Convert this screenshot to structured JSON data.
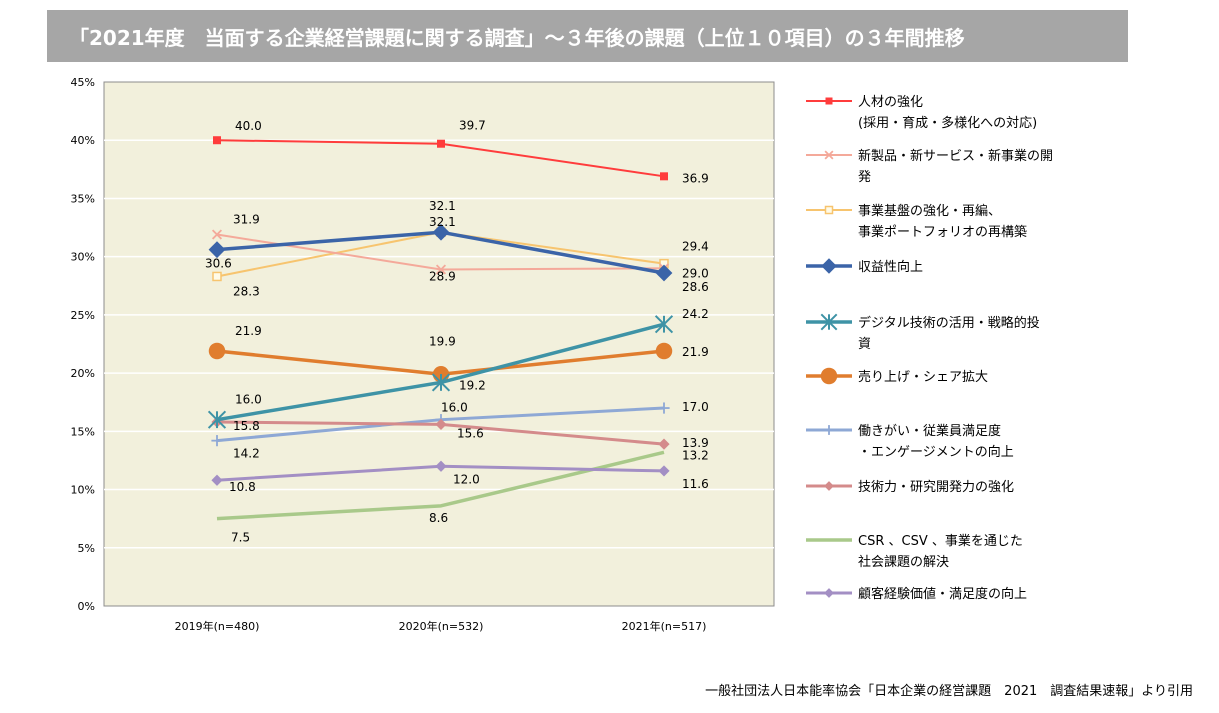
{
  "header": {
    "title": "「2021年度　当面する企業経営課題に関する調査」～３年後の課題（上位１０項目）の３年間推移"
  },
  "footer": {
    "source": "一般社団法人日本能率協会「日本企業の経営課題　2021　調査結果速報」より引用"
  },
  "chart_data": {
    "type": "line",
    "categories": [
      "2019年(n=480)",
      "2020年(n=532)",
      "2021年(n=517)"
    ],
    "yticks": [
      "0%",
      "5%",
      "10%",
      "15%",
      "20%",
      "25%",
      "30%",
      "35%",
      "40%",
      "45%"
    ],
    "ylim": [
      0,
      45
    ],
    "grid": true,
    "legend_position": "right",
    "series": [
      {
        "name": "人材の強化",
        "name2": "(採用・育成・多様化への対応)",
        "values": [
          40.0,
          39.7,
          36.9
        ],
        "labels": [
          "40.0",
          "39.7",
          "36.9"
        ],
        "color": "#ff3c3c",
        "marker": "square",
        "width": 2
      },
      {
        "name": "新製品・新サービス・新事業の開",
        "name2": "発",
        "values": [
          31.9,
          28.9,
          29.0
        ],
        "labels": [
          "31.9",
          "28.9",
          "29.0"
        ],
        "color": "#f4a99a",
        "marker": "star",
        "width": 2
      },
      {
        "name": "事業基盤の強化・再編、",
        "name2": "事業ポートフォリオの再構築",
        "values": [
          28.3,
          32.1,
          29.4
        ],
        "labels": [
          "28.3",
          "32.1",
          "29.4"
        ],
        "color": "#f7c46e",
        "marker": "square-open",
        "width": 2
      },
      {
        "name": "収益性向上",
        "name2": "",
        "values": [
          30.6,
          32.1,
          28.6
        ],
        "labels": [
          "30.6",
          "32.1",
          "28.6"
        ],
        "color": "#3b64a8",
        "marker": "diamond",
        "width": 3.5
      },
      {
        "name": "デジタル技術の活用・戦略的投",
        "name2": "資",
        "values": [
          16.0,
          19.2,
          24.2
        ],
        "labels": [
          "16.0",
          "19.2",
          "24.2"
        ],
        "color": "#3e93a6",
        "marker": "asterisk",
        "width": 3.5
      },
      {
        "name": "売り上げ・シェア拡大",
        "name2": "",
        "values": [
          21.9,
          19.9,
          21.9
        ],
        "labels": [
          "21.9",
          "19.9",
          "21.9"
        ],
        "color": "#e07d2e",
        "marker": "circle",
        "width": 3.5
      },
      {
        "name": "働きがい・従業員満足度",
        "name2": "・エンゲージメントの向上",
        "values": [
          14.2,
          16.0,
          17.0
        ],
        "labels": [
          "14.2",
          "16.0",
          "17.0"
        ],
        "color": "#8ea8d5",
        "marker": "plus",
        "width": 3
      },
      {
        "name": "技術力・研究開発力の強化",
        "name2": "",
        "values": [
          15.8,
          15.6,
          13.9
        ],
        "labels": [
          "15.8",
          "15.6",
          "13.9"
        ],
        "color": "#d48b8b",
        "marker": "diamond",
        "width": 3
      },
      {
        "name": "CSR 、CSV 、事業を通じた",
        "name2": "社会課題の解決",
        "values": [
          7.5,
          8.6,
          13.2
        ],
        "labels": [
          "7.5",
          "8.6",
          "13.2"
        ],
        "color": "#a9c98a",
        "marker": "none",
        "width": 3.5
      },
      {
        "name": "顧客経験価値・満足度の向上",
        "name2": "",
        "values": [
          10.8,
          12.0,
          11.6
        ],
        "labels": [
          "10.8",
          "12.0",
          "11.6"
        ],
        "color": "#a38fc4",
        "marker": "diamond",
        "width": 3
      }
    ]
  }
}
